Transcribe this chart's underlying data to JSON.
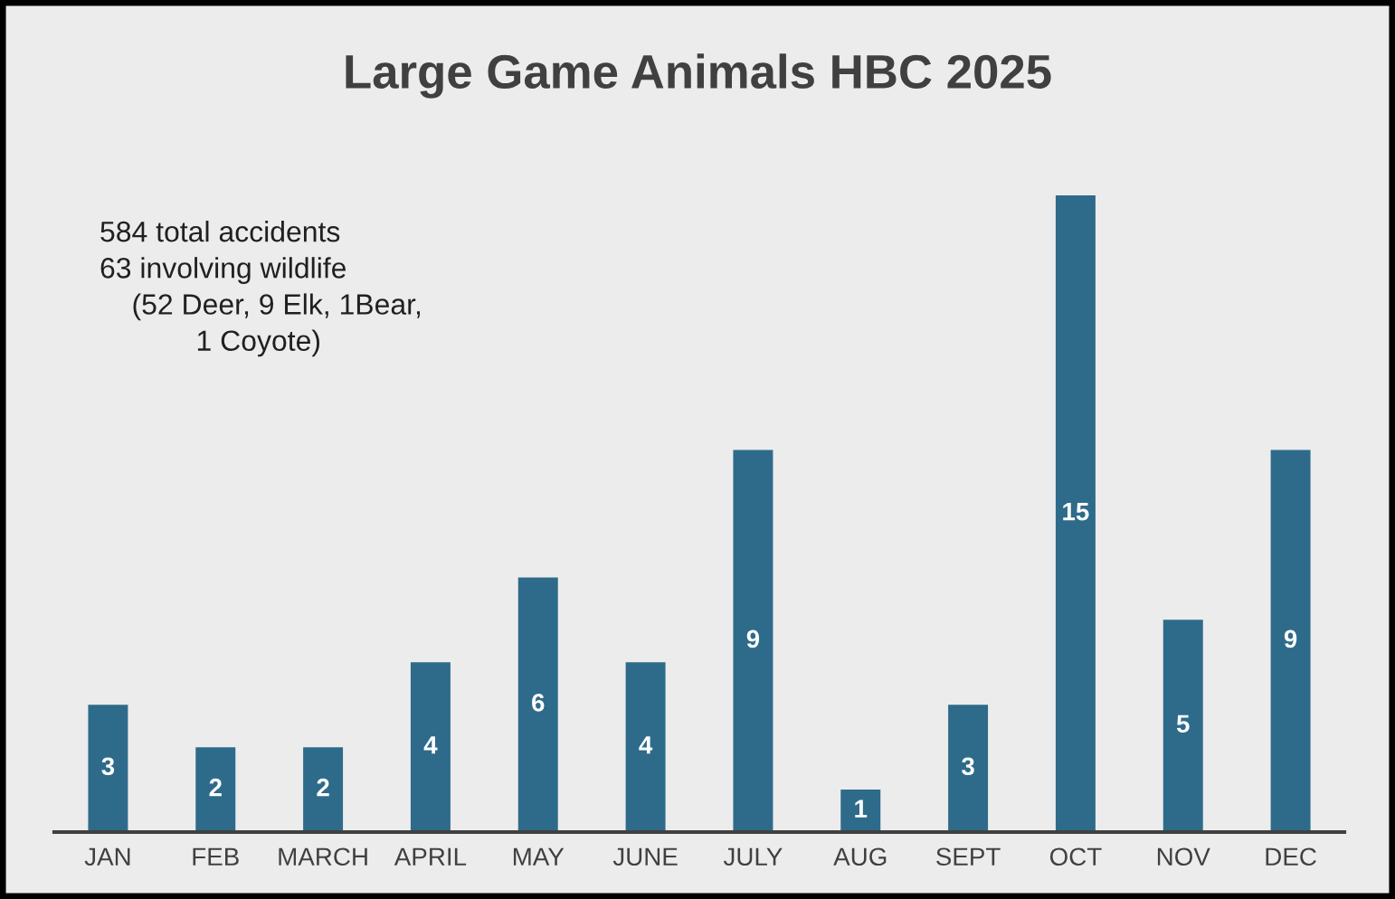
{
  "chart_data": {
    "type": "bar",
    "title": "Large Game Animals HBC 2025",
    "categories": [
      "JAN",
      "FEB",
      "MARCH",
      "APRIL",
      "MAY",
      "JUNE",
      "JULY",
      "AUG",
      "SEPT",
      "OCT",
      "NOV",
      "DEC"
    ],
    "values": [
      3,
      2,
      2,
      4,
      6,
      4,
      9,
      1,
      3,
      15,
      5,
      9
    ],
    "color": "#2e6b8a",
    "data_labels": true,
    "annotations": [
      "584 total accidents\n63 involving wildlife\n    (52 Deer, 9 Elk, 1Bear,\n            1 Coyote)"
    ],
    "grid": false,
    "legend": false
  }
}
